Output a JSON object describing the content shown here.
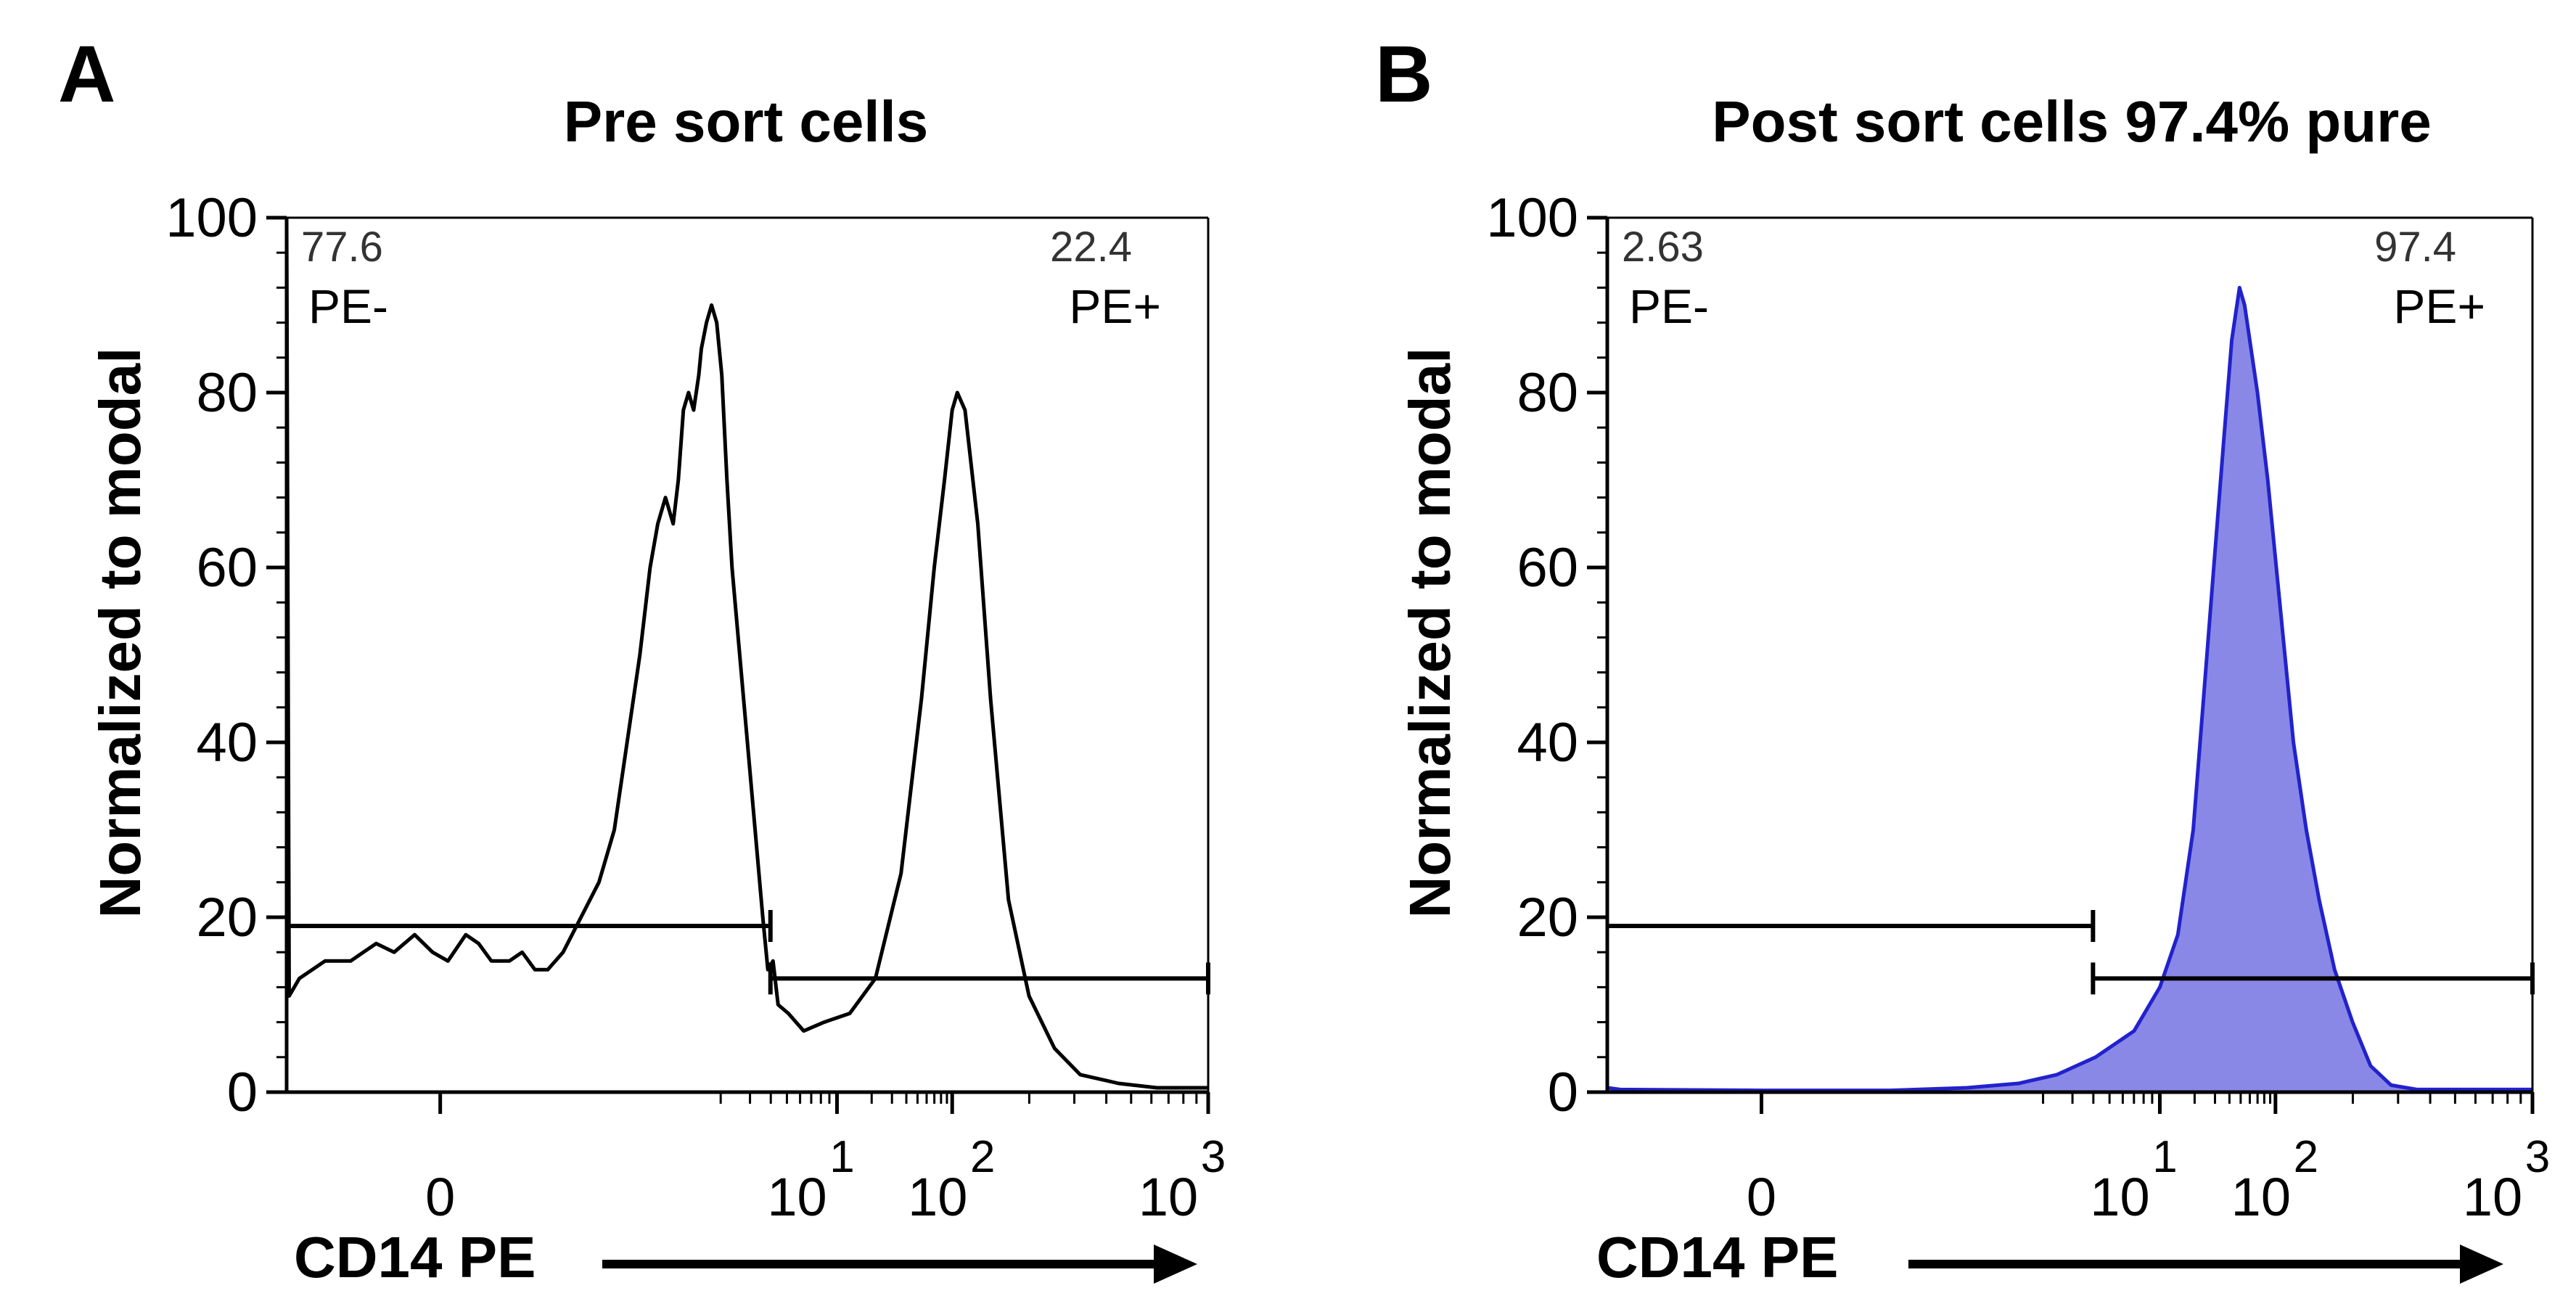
{
  "chart_data": [
    {
      "type": "histogram",
      "panel": "A",
      "title": "Pre sort cells",
      "ylabel": "Normalized to modal",
      "xlabel": "CD14 PE",
      "ylim": [
        0,
        100
      ],
      "y_ticks": [
        "0",
        "20",
        "40",
        "60",
        "80",
        "100"
      ],
      "x_ticks": [
        {
          "base": "0",
          "exp": ""
        },
        {
          "base": "10",
          "exp": "1"
        },
        {
          "base": "10",
          "exp": "2"
        },
        {
          "base": "10",
          "exp": "3"
        }
      ],
      "fill": "none",
      "stroke": "#000000",
      "gates": [
        {
          "name": "PE-",
          "percent": "77.6",
          "range": [
            -0.6,
            1.29
          ],
          "level": 19
        },
        {
          "name": "PE+",
          "percent": "22.4",
          "range": [
            1.29,
            3.0
          ],
          "level": 13
        }
      ],
      "series": [
        {
          "name": "CD14 PE",
          "points": [
            [
              -0.6,
              100
            ],
            [
              -0.59,
              11
            ],
            [
              -0.55,
              13
            ],
            [
              -0.45,
              15
            ],
            [
              -0.35,
              15
            ],
            [
              -0.3,
              16
            ],
            [
              -0.25,
              17
            ],
            [
              -0.18,
              16
            ],
            [
              -0.1,
              18
            ],
            [
              -0.03,
              16
            ],
            [
              0.03,
              15
            ],
            [
              0.1,
              18
            ],
            [
              0.15,
              17
            ],
            [
              0.2,
              15
            ],
            [
              0.27,
              15
            ],
            [
              0.32,
              16
            ],
            [
              0.37,
              14
            ],
            [
              0.42,
              14
            ],
            [
              0.48,
              16
            ],
            [
              0.55,
              20
            ],
            [
              0.62,
              24
            ],
            [
              0.68,
              30
            ],
            [
              0.73,
              40
            ],
            [
              0.78,
              50
            ],
            [
              0.82,
              60
            ],
            [
              0.85,
              65
            ],
            [
              0.88,
              68
            ],
            [
              0.91,
              65
            ],
            [
              0.93,
              70
            ],
            [
              0.95,
              78
            ],
            [
              0.97,
              80
            ],
            [
              0.99,
              78
            ],
            [
              1.01,
              82
            ],
            [
              1.02,
              85
            ],
            [
              1.04,
              88
            ],
            [
              1.06,
              90
            ],
            [
              1.08,
              88
            ],
            [
              1.1,
              82
            ],
            [
              1.12,
              70
            ],
            [
              1.14,
              60
            ],
            [
              1.17,
              50
            ],
            [
              1.2,
              40
            ],
            [
              1.23,
              30
            ],
            [
              1.26,
              20
            ],
            [
              1.28,
              14
            ],
            [
              1.3,
              15
            ],
            [
              1.32,
              10
            ],
            [
              1.36,
              9
            ],
            [
              1.42,
              7
            ],
            [
              1.5,
              8
            ],
            [
              1.6,
              9
            ],
            [
              1.7,
              13
            ],
            [
              1.8,
              25
            ],
            [
              1.88,
              45
            ],
            [
              1.93,
              60
            ],
            [
              1.97,
              70
            ],
            [
              2.0,
              78
            ],
            [
              2.02,
              80
            ],
            [
              2.05,
              78
            ],
            [
              2.1,
              65
            ],
            [
              2.15,
              45
            ],
            [
              2.22,
              22
            ],
            [
              2.3,
              11
            ],
            [
              2.4,
              5
            ],
            [
              2.5,
              2
            ],
            [
              2.65,
              1
            ],
            [
              2.8,
              0.5
            ],
            [
              3.0,
              0.5
            ]
          ]
        }
      ]
    },
    {
      "type": "histogram",
      "panel": "B",
      "title": "Post sort cells 97.4% pure",
      "ylabel": "Normalized to modal",
      "xlabel": "CD14 PE",
      "ylim": [
        0,
        100
      ],
      "y_ticks": [
        "0",
        "20",
        "40",
        "60",
        "80",
        "100"
      ],
      "x_ticks": [
        {
          "base": "0",
          "exp": ""
        },
        {
          "base": "10",
          "exp": "1"
        },
        {
          "base": "10",
          "exp": "2"
        },
        {
          "base": "10",
          "exp": "3"
        }
      ],
      "fill": "#8a88e6",
      "stroke": "#2222cc",
      "gates": [
        {
          "name": "PE-",
          "percent": "2.63",
          "range": [
            -0.6,
            1.29
          ],
          "level": 19
        },
        {
          "name": "PE+",
          "percent": "97.4",
          "range": [
            1.29,
            3.0
          ],
          "level": 13
        }
      ],
      "series": [
        {
          "name": "CD14 PE",
          "points": [
            [
              -0.6,
              0.5
            ],
            [
              -0.55,
              0.3
            ],
            [
              0.0,
              0.2
            ],
            [
              0.5,
              0.2
            ],
            [
              0.8,
              0.5
            ],
            [
              1.0,
              1
            ],
            [
              1.15,
              2
            ],
            [
              1.3,
              4
            ],
            [
              1.45,
              7
            ],
            [
              1.55,
              12
            ],
            [
              1.62,
              18
            ],
            [
              1.68,
              30
            ],
            [
              1.72,
              45
            ],
            [
              1.76,
              60
            ],
            [
              1.8,
              75
            ],
            [
              1.83,
              86
            ],
            [
              1.86,
              92
            ],
            [
              1.88,
              90
            ],
            [
              1.9,
              86
            ],
            [
              1.93,
              80
            ],
            [
              1.97,
              70
            ],
            [
              2.02,
              55
            ],
            [
              2.07,
              40
            ],
            [
              2.12,
              30
            ],
            [
              2.17,
              22
            ],
            [
              2.23,
              14
            ],
            [
              2.3,
              8
            ],
            [
              2.37,
              3
            ],
            [
              2.45,
              0.8
            ],
            [
              2.55,
              0.3
            ],
            [
              3.0,
              0.3
            ]
          ]
        }
      ]
    }
  ]
}
